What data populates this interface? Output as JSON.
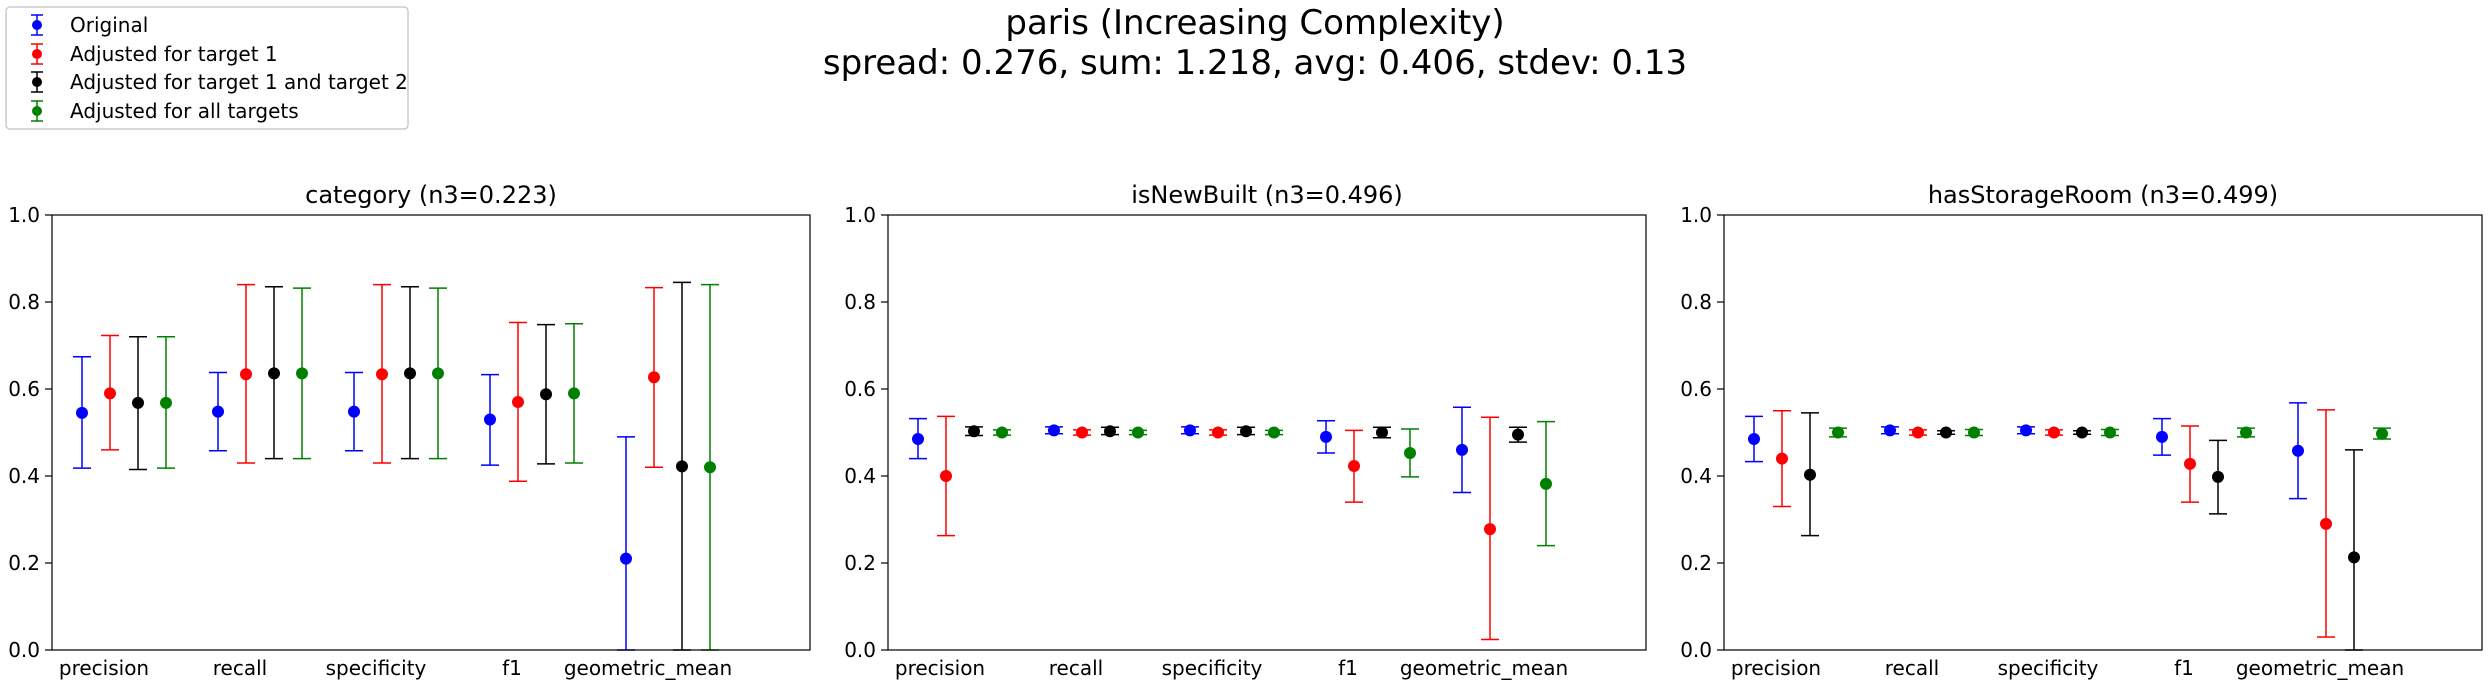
{
  "figure": {
    "title_line1": "paris (Increasing Complexity)",
    "title_line2": "spread: 0.276, sum: 1.218, avg: 0.406, stdev: 0.13"
  },
  "legend": [
    {
      "label": "Original",
      "color": "#0000ff"
    },
    {
      "label": "Adjusted for target 1",
      "color": "#ff0000"
    },
    {
      "label": "Adjusted for target 1 and target 2",
      "color": "#000000"
    },
    {
      "label": "Adjusted for all targets",
      "color": "#008000"
    }
  ],
  "chart_data": [
    {
      "type": "errorbar",
      "title": "category (n3=0.223)",
      "categories": [
        "precision",
        "recall",
        "specificity",
        "f1",
        "geometric_mean"
      ],
      "ylim": [
        0.0,
        1.0
      ],
      "yticks": [
        "0.0",
        "0.2",
        "0.4",
        "0.6",
        "0.8",
        "1.0"
      ],
      "series": [
        {
          "name": "Original",
          "color": "#0000ff",
          "values": [
            0.545,
            0.548,
            0.548,
            0.53,
            0.21
          ],
          "err_low": [
            0.418,
            0.458,
            0.458,
            0.425,
            0.0
          ],
          "err_high": [
            0.674,
            0.638,
            0.638,
            0.633,
            0.49
          ]
        },
        {
          "name": "Adjusted for target 1",
          "color": "#ff0000",
          "values": [
            0.59,
            0.634,
            0.634,
            0.57,
            0.627
          ],
          "err_low": [
            0.46,
            0.43,
            0.43,
            0.388,
            0.42
          ],
          "err_high": [
            0.723,
            0.84,
            0.84,
            0.753,
            0.833
          ]
        },
        {
          "name": "Adjusted for target 1 and target 2",
          "color": "#000000",
          "values": [
            0.568,
            0.636,
            0.636,
            0.588,
            0.422
          ],
          "err_low": [
            0.415,
            0.44,
            0.44,
            0.428,
            0.0
          ],
          "err_high": [
            0.72,
            0.835,
            0.835,
            0.748,
            0.845
          ]
        },
        {
          "name": "Adjusted for all targets",
          "color": "#008000",
          "values": [
            0.568,
            0.636,
            0.636,
            0.59,
            0.42
          ],
          "err_low": [
            0.418,
            0.44,
            0.44,
            0.43,
            0.0
          ],
          "err_high": [
            0.72,
            0.832,
            0.832,
            0.75,
            0.84
          ]
        }
      ]
    },
    {
      "type": "errorbar",
      "title": "isNewBuilt (n3=0.496)",
      "categories": [
        "precision",
        "recall",
        "specificity",
        "f1",
        "geometric_mean"
      ],
      "ylim": [
        0.0,
        1.0
      ],
      "yticks": [
        "0.0",
        "0.2",
        "0.4",
        "0.6",
        "0.8",
        "1.0"
      ],
      "series": [
        {
          "name": "Original",
          "color": "#0000ff",
          "values": [
            0.485,
            0.505,
            0.505,
            0.49,
            0.46
          ],
          "err_low": [
            0.44,
            0.497,
            0.497,
            0.453,
            0.362
          ],
          "err_high": [
            0.532,
            0.513,
            0.513,
            0.527,
            0.558
          ]
        },
        {
          "name": "Adjusted for target 1",
          "color": "#ff0000",
          "values": [
            0.4,
            0.5,
            0.5,
            0.423,
            0.278
          ],
          "err_low": [
            0.263,
            0.494,
            0.494,
            0.34,
            0.024
          ],
          "err_high": [
            0.537,
            0.506,
            0.506,
            0.505,
            0.535
          ]
        },
        {
          "name": "Adjusted for target 1 and target 2",
          "color": "#000000",
          "values": [
            0.503,
            0.503,
            0.503,
            0.5,
            0.495
          ],
          "err_low": [
            0.493,
            0.495,
            0.495,
            0.488,
            0.478
          ],
          "err_high": [
            0.513,
            0.512,
            0.512,
            0.512,
            0.512
          ]
        },
        {
          "name": "Adjusted for all targets",
          "color": "#008000",
          "values": [
            0.5,
            0.5,
            0.5,
            0.453,
            0.382
          ],
          "err_low": [
            0.494,
            0.495,
            0.495,
            0.398,
            0.24
          ],
          "err_high": [
            0.506,
            0.505,
            0.505,
            0.508,
            0.525
          ]
        }
      ]
    },
    {
      "type": "errorbar",
      "title": "hasStorageRoom (n3=0.499)",
      "categories": [
        "precision",
        "recall",
        "specificity",
        "f1",
        "geometric_mean"
      ],
      "ylim": [
        0.0,
        1.0
      ],
      "yticks": [
        "0.0",
        "0.2",
        "0.4",
        "0.6",
        "0.8",
        "1.0"
      ],
      "series": [
        {
          "name": "Original",
          "color": "#0000ff",
          "values": [
            0.485,
            0.505,
            0.505,
            0.49,
            0.458
          ],
          "err_low": [
            0.433,
            0.497,
            0.497,
            0.448,
            0.348
          ],
          "err_high": [
            0.537,
            0.513,
            0.513,
            0.532,
            0.568
          ]
        },
        {
          "name": "Adjusted for target 1",
          "color": "#ff0000",
          "values": [
            0.44,
            0.5,
            0.5,
            0.428,
            0.29
          ],
          "err_low": [
            0.33,
            0.494,
            0.494,
            0.34,
            0.03
          ],
          "err_high": [
            0.55,
            0.506,
            0.506,
            0.515,
            0.552
          ]
        },
        {
          "name": "Adjusted for target 1 and target 2",
          "color": "#000000",
          "values": [
            0.403,
            0.5,
            0.5,
            0.398,
            0.213
          ],
          "err_low": [
            0.263,
            0.496,
            0.496,
            0.313,
            0.0
          ],
          "err_high": [
            0.545,
            0.504,
            0.504,
            0.482,
            0.46
          ]
        },
        {
          "name": "Adjusted for all targets",
          "color": "#008000",
          "values": [
            0.5,
            0.5,
            0.5,
            0.5,
            0.497
          ],
          "err_low": [
            0.49,
            0.493,
            0.493,
            0.49,
            0.485
          ],
          "err_high": [
            0.51,
            0.507,
            0.507,
            0.51,
            0.51
          ]
        }
      ]
    }
  ]
}
